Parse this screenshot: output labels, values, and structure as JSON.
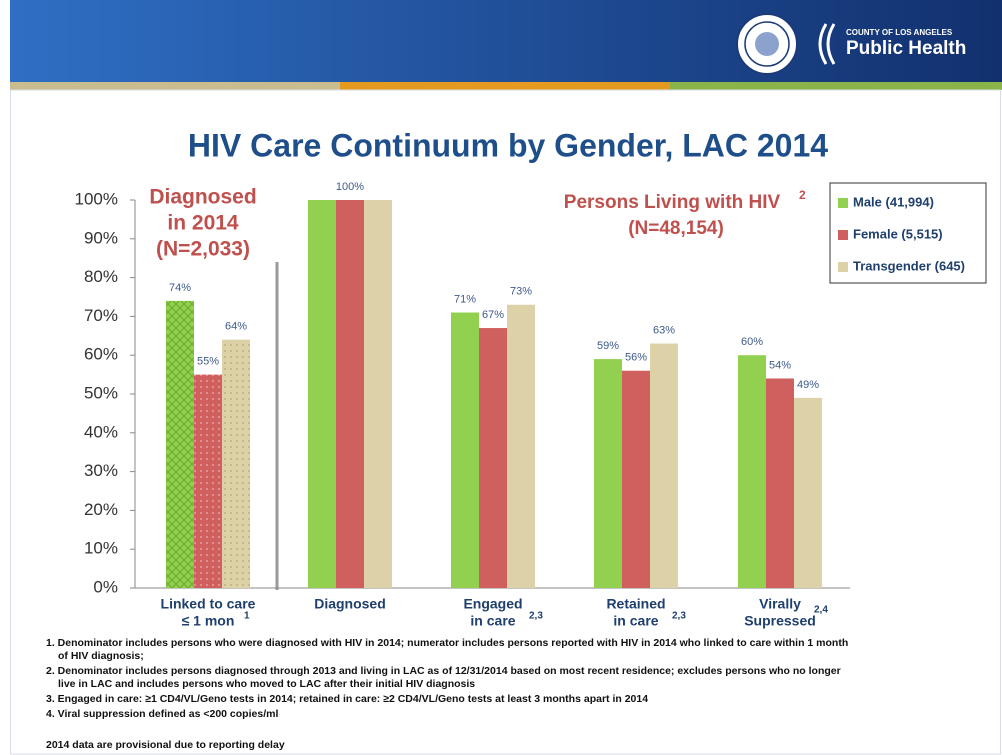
{
  "header": {
    "org_top": "COUNTY OF LOS ANGELES",
    "org": "Public Health"
  },
  "chart_data": {
    "type": "bar",
    "title": "HIV Care Continuum by Gender, LAC 2014",
    "categories": [
      [
        "Linked to care",
        "≤ 1 mon"
      ],
      [
        "Diagnosed"
      ],
      [
        "Engaged",
        "in care"
      ],
      [
        "Retained",
        "in care"
      ],
      [
        "Virally",
        "Supressed"
      ]
    ],
    "category_notes": [
      "1",
      null,
      "2,3",
      "2,3",
      "2,4"
    ],
    "patterned": [
      true,
      false,
      false,
      false,
      false
    ],
    "series": [
      {
        "name": "Male (41,994)",
        "color": "#92d050",
        "values": [
          74,
          100,
          71,
          59,
          60
        ],
        "value_labels": [
          "74%",
          null,
          "71%",
          "59%",
          "60%"
        ]
      },
      {
        "name": "Female (5,515)",
        "color": "#d0605e",
        "values": [
          55,
          100,
          67,
          56,
          54
        ],
        "value_labels": [
          "55%",
          "100%",
          "67%",
          "56%",
          "54%"
        ]
      },
      {
        "name": "Transgender (645)",
        "color": "#ddd1a8",
        "values": [
          64,
          100,
          73,
          63,
          49
        ],
        "value_labels": [
          "64%",
          null,
          "73%",
          "63%",
          "49%"
        ]
      }
    ],
    "ylim": [
      0,
      100
    ],
    "yticks": [
      {
        "value": 0,
        "label": "0%"
      },
      {
        "value": 10,
        "label": "10%"
      },
      {
        "value": 20,
        "label": "20%"
      },
      {
        "value": 30,
        "label": "30%"
      },
      {
        "value": 40,
        "label": "40%"
      },
      {
        "value": 50,
        "label": "50%"
      },
      {
        "value": 60,
        "label": "60%"
      },
      {
        "value": 70,
        "label": "70%"
      },
      {
        "value": 80,
        "label": "80%"
      },
      {
        "value": 90,
        "label": "90%"
      },
      {
        "value": 100,
        "label": "100%"
      }
    ],
    "legend": "upper right",
    "annotations": [
      {
        "lines": [
          "Diagnosed",
          "in 2014",
          "(N=2,033)"
        ]
      },
      {
        "lines": [
          "Persons Living with HIV",
          "(N=48,154)"
        ],
        "sup": "2"
      }
    ]
  },
  "footnotes": [
    [
      "1. Denominator includes persons who were diagnosed with HIV in 2014; numerator includes persons reported with HIV in 2014 who linked to care within 1 month",
      "of HIV diagnosis;"
    ],
    [
      "2. Denominator includes persons diagnosed through 2013 and living in LAC as of 12/31/2014 based on most recent residence; excludes persons who no longer",
      "live in LAC and includes persons who moved to LAC after their initial HIV diagnosis"
    ],
    [
      "3. Engaged in care:  ≥1 CD4/VL/Geno tests in 2014; retained in care: ≥2 CD4/VL/Geno tests at least 3 months apart in 2014"
    ],
    [
      "4. Viral suppression defined as <200 copies/ml"
    ]
  ],
  "note": "2014 data are provisional due to reporting delay"
}
